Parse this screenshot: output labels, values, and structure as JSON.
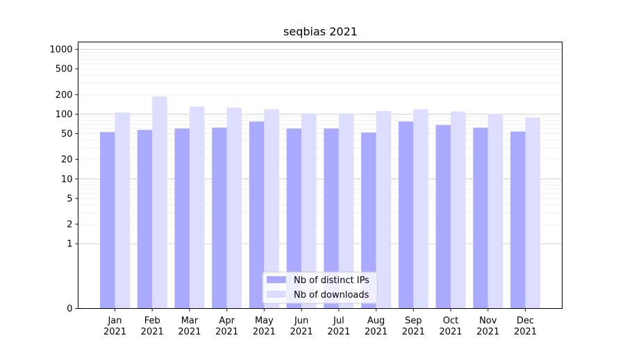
{
  "chart_data": {
    "type": "bar",
    "title": "seqbias 2021",
    "xlabel": "",
    "ylabel": "",
    "yscale": "symlog",
    "ylim": [
      0,
      1300
    ],
    "yticks": [
      0,
      1,
      2,
      5,
      10,
      20,
      50,
      100,
      200,
      500,
      1000
    ],
    "grid": true,
    "legend_position": "bottom-center",
    "categories": [
      [
        "Jan",
        "2021"
      ],
      [
        "Feb",
        "2021"
      ],
      [
        "Mar",
        "2021"
      ],
      [
        "Apr",
        "2021"
      ],
      [
        "May",
        "2021"
      ],
      [
        "Jun",
        "2021"
      ],
      [
        "Jul",
        "2021"
      ],
      [
        "Aug",
        "2021"
      ],
      [
        "Sep",
        "2021"
      ],
      [
        "Oct",
        "2021"
      ],
      [
        "Nov",
        "2021"
      ],
      [
        "Dec",
        "2021"
      ]
    ],
    "series": [
      {
        "name": "Nb of distinct IPs",
        "color": "#aaaaff",
        "values": [
          53,
          57,
          60,
          62,
          77,
          60,
          60,
          52,
          77,
          68,
          62,
          54
        ]
      },
      {
        "name": "Nb of downloads",
        "color": "#ddddff",
        "values": [
          106,
          188,
          131,
          126,
          119,
          103,
          100,
          112,
          119,
          110,
          101,
          88
        ]
      }
    ]
  }
}
